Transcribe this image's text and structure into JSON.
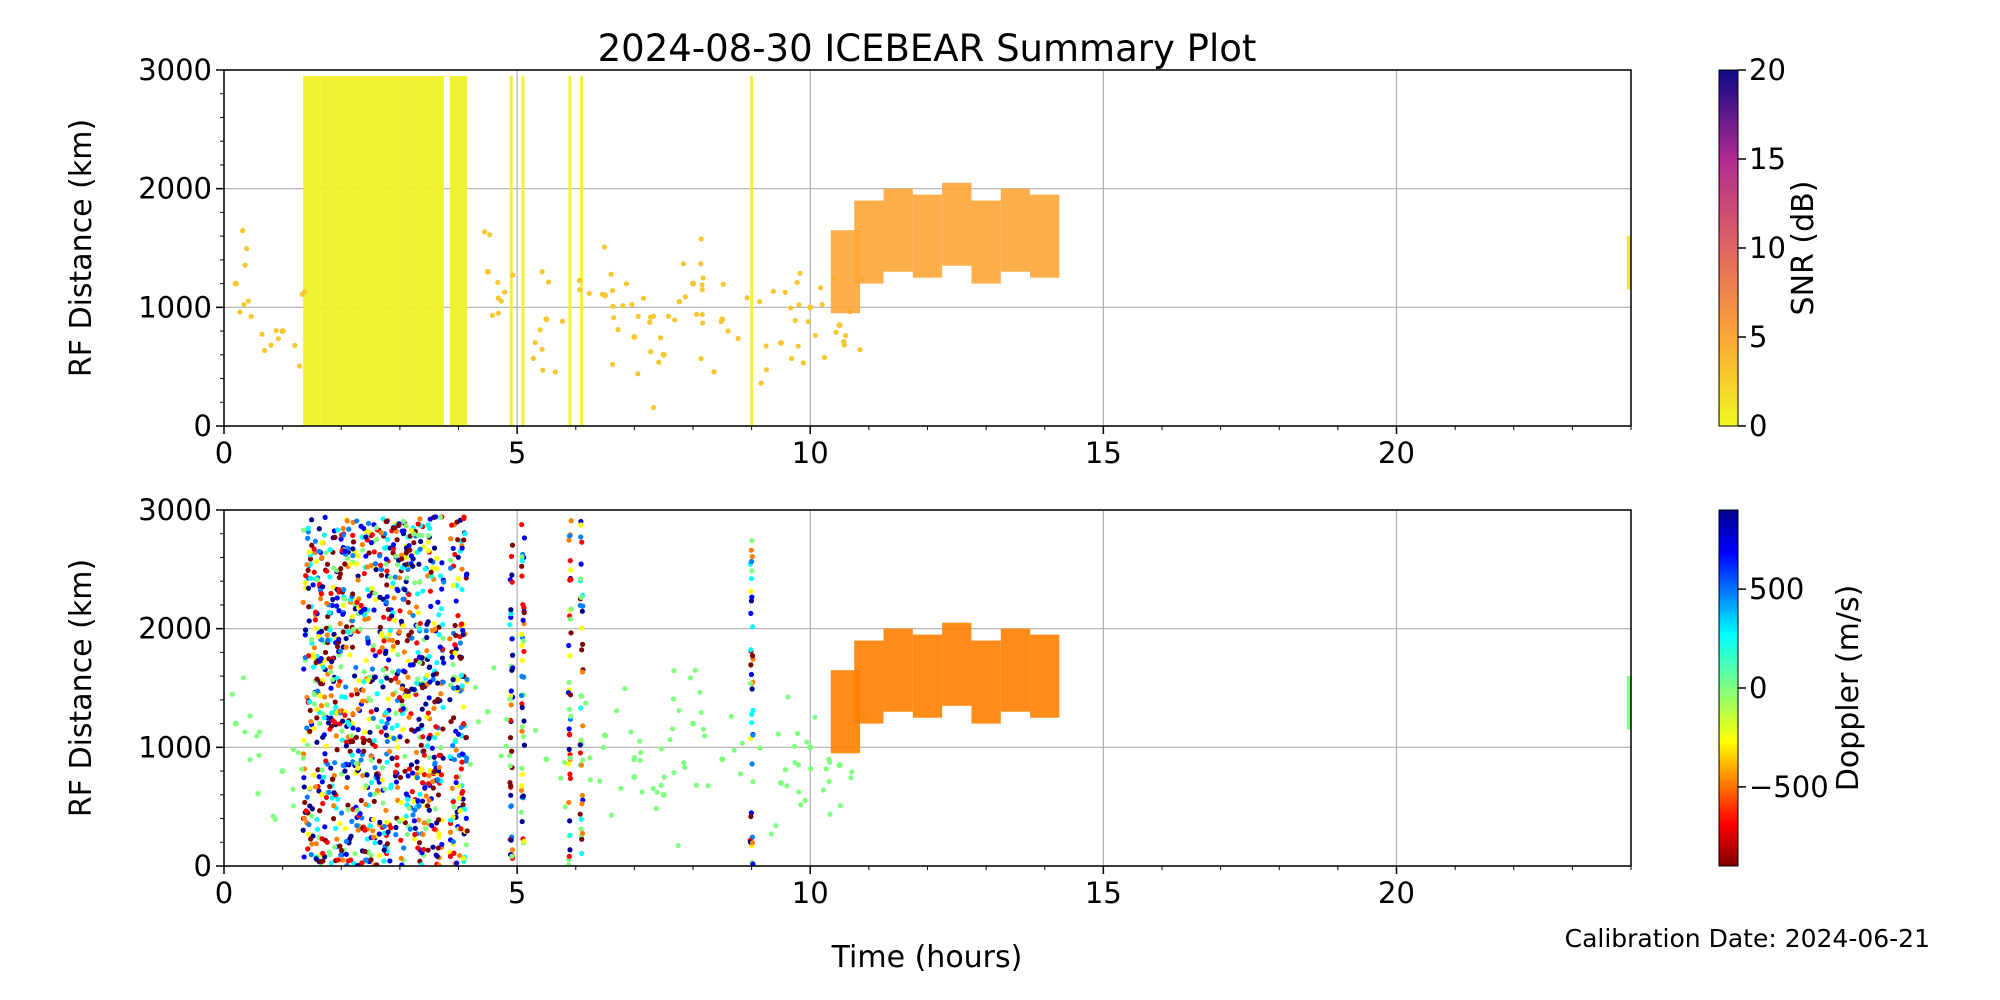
{
  "figure": {
    "title": "2024-08-30 ICEBEAR Summary Plot",
    "calibration_text": "Calibration Date: 2024-06-21",
    "x_label": "Time (hours)"
  },
  "chart_data": [
    {
      "type": "scatter",
      "title": "2024-08-30 ICEBEAR Summary Plot",
      "xlabel": "",
      "ylabel": "RF Distance (km)",
      "xlim": [
        0,
        24
      ],
      "ylim": [
        0,
        3000
      ],
      "xticks": [
        "0",
        "5",
        "10",
        "15",
        "20"
      ],
      "yticks": [
        "0",
        "1000",
        "2000",
        "3000"
      ],
      "grid": true,
      "color_variable": "SNR (dB)",
      "colorbar": {
        "label": "SNR (dB)",
        "min": 0,
        "max": 20,
        "ticks": [
          "0",
          "5",
          "10",
          "15",
          "20"
        ],
        "colormap": "plasma_r"
      },
      "series": [
        {
          "name": "",
          "x": [
            1.5,
            1.8,
            2.1,
            2.4,
            2.7,
            3.0,
            3.3,
            3.6,
            4.0,
            4.9,
            5.1,
            5.9,
            6.1,
            9.0
          ],
          "y_range": [
            0,
            2950
          ],
          "color_value": 0.5
        },
        {
          "name": "",
          "x": [
            0.2,
            1.0,
            4.5,
            5.5,
            6.5,
            7.0,
            7.5,
            8.0,
            8.5,
            9.5,
            10.0,
            10.5
          ],
          "y": [
            1200,
            800,
            1300,
            900,
            1100,
            750,
            600,
            1200,
            900,
            700,
            1000,
            850
          ],
          "color_value": 3
        },
        {
          "name": "",
          "x": [
            10.6,
            11.0,
            11.5,
            12.0,
            12.5,
            13.0,
            13.5,
            14.0
          ],
          "y": [
            1300,
            1550,
            1650,
            1600,
            1700,
            1550,
            1650,
            1600
          ],
          "color_value": 5
        }
      ]
    },
    {
      "type": "scatter",
      "title": "",
      "xlabel": "Time (hours)",
      "ylabel": "RF Distance (km)",
      "xlim": [
        0,
        24
      ],
      "ylim": [
        0,
        3000
      ],
      "xticks": [
        "0",
        "5",
        "10",
        "15",
        "20"
      ],
      "yticks": [
        "0",
        "1000",
        "2000",
        "3000"
      ],
      "grid": true,
      "color_variable": "Doppler (m/s)",
      "colorbar": {
        "label": "Doppler (m/s)",
        "min": -900,
        "max": 900,
        "ticks": [
          "−500",
          "0",
          "500"
        ],
        "tick_values": [
          -500,
          0,
          500
        ],
        "colormap": "jet_r"
      },
      "series": [
        {
          "name": "",
          "x": [
            1.5,
            1.8,
            2.1,
            2.4,
            2.7,
            3.0,
            3.3,
            3.6,
            4.0,
            4.9,
            5.1,
            5.9,
            6.1,
            9.0
          ],
          "y_range": [
            0,
            2950
          ],
          "color_value": "mixed"
        },
        {
          "name": "",
          "x": [
            0.2,
            1.0,
            4.5,
            5.5,
            6.5,
            7.0,
            7.5,
            8.0,
            8.5,
            9.5,
            10.0,
            10.5
          ],
          "y": [
            1200,
            800,
            1300,
            900,
            1100,
            750,
            600,
            1200,
            900,
            700,
            1000,
            850
          ],
          "color_value": -50
        },
        {
          "name": "",
          "x": [
            10.6,
            11.0,
            11.5,
            12.0,
            12.5,
            13.0,
            13.5,
            14.0
          ],
          "y": [
            1300,
            1550,
            1650,
            1600,
            1700,
            1550,
            1650,
            1600
          ],
          "color_value": -450
        }
      ]
    }
  ]
}
